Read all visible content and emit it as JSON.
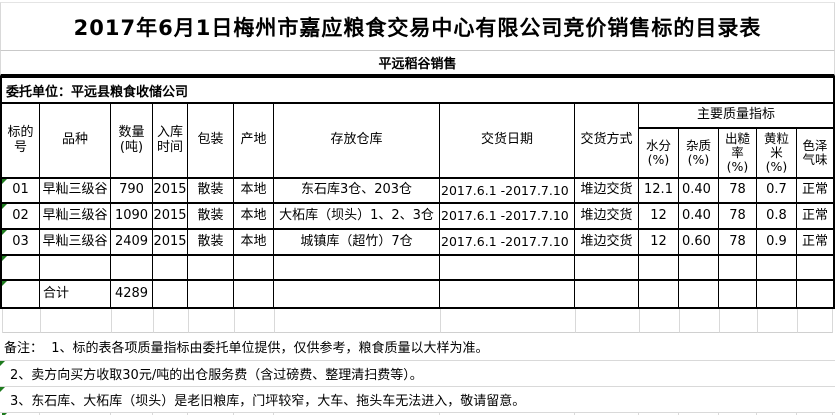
{
  "page": {
    "title": "2017年6月1日梅州市嘉应粮食交易中心有限公司竞价销售标的目录表",
    "section_title": "平远稻谷销售",
    "consignor": "委托单位：平远县粮食收储公司"
  },
  "table": {
    "quality_group_header": "主要质量指标",
    "headers": {
      "bid_no": "标的\n号",
      "variety": "品种",
      "quantity": "数量\n(吨)",
      "storage_time": "入库\n时间",
      "packing": "包装",
      "origin": "产地",
      "warehouse": "存放仓库",
      "delivery_date": "交货日期",
      "delivery_method": "交货方式",
      "moisture": "水分\n(%)",
      "impurity": "杂质\n(%)",
      "rice_yield": "出糙\n率\n(%)",
      "yellow_grain": "黄粒\n米\n(%)",
      "color_odor": "色泽\n气味"
    },
    "rows": [
      {
        "bid_no": "01",
        "variety": "早籼三级谷",
        "quantity": "790",
        "storage_time": "2015",
        "packing": "散装",
        "origin": "本地",
        "warehouse": "东石库3仓、203仓",
        "delivery_date": "2017.6.1 -2017.7.10",
        "delivery_method": "堆边交货",
        "moisture": "12.1",
        "impurity": "0.40",
        "rice_yield": "78",
        "yellow_grain": "0.7",
        "color_odor": "正常"
      },
      {
        "bid_no": "02",
        "variety": "早籼三级谷",
        "quantity": "1090",
        "storage_time": "2015",
        "packing": "散装",
        "origin": "本地",
        "warehouse": "大柘库（坝头）1、2、3仓",
        "delivery_date": "2017.6.1 -2017.7.10",
        "delivery_method": "堆边交货",
        "moisture": "12",
        "impurity": "0.40",
        "rice_yield": "78",
        "yellow_grain": "0.8",
        "color_odor": "正常"
      },
      {
        "bid_no": "03",
        "variety": "早籼三级谷",
        "quantity": "2409",
        "storage_time": "2015",
        "packing": "散装",
        "origin": "本地",
        "warehouse": "城镇库（超竹）7仓",
        "delivery_date": "2017.6.1 -2017.7.10",
        "delivery_method": "堆边交货",
        "moisture": "12",
        "impurity": "0.60",
        "rice_yield": "78",
        "yellow_grain": "0.9",
        "color_odor": "正常"
      },
      {
        "bid_no": "",
        "variety": "",
        "quantity": "",
        "storage_time": "",
        "packing": "",
        "origin": "",
        "warehouse": "",
        "delivery_date": "",
        "delivery_method": "",
        "moisture": "",
        "impurity": "",
        "rice_yield": "",
        "yellow_grain": "",
        "color_odor": ""
      }
    ],
    "total": {
      "label": "合计",
      "quantity": "4289"
    }
  },
  "notes": [
    "备注：  1、标的表各项质量指标由委托单位提供，仅供参考，粮食质量以大样为准。",
    "2、卖方向买方收取30元/吨的出仓服务费（含过磅费、整理清扫费等）。",
    "3、东石库、大柘库（坝头）是老旧粮库，门坪较窄，大车、拖头车无法进入，敬请留意。"
  ],
  "colors": {
    "table_border": "#000000",
    "gridline": "#d9d9d9",
    "flag_green": "#1e7b1e"
  }
}
